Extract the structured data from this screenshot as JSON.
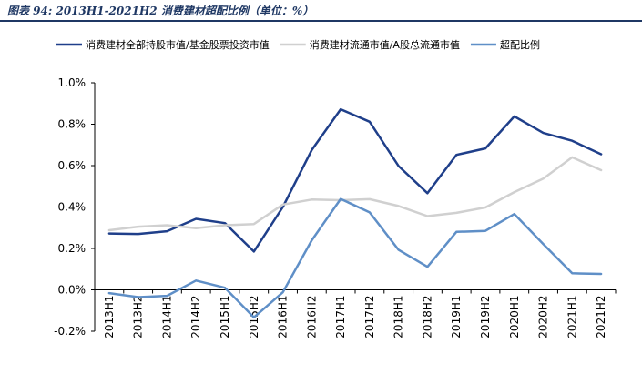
{
  "title": "图表 94:  2013H1-2021H2 消费建材超配比例（单位：%）",
  "chart_data": {
    "type": "line",
    "title": "图表 94:  2013H1-2021H2 消费建材超配比例（单位：%）",
    "xlabel": "",
    "ylabel": "",
    "categories": [
      "2013H1",
      "2013H2",
      "2014H1",
      "2014H2",
      "2015H1",
      "2015H2",
      "2016H1",
      "2016H2",
      "2017H1",
      "2017H2",
      "2018H1",
      "2018H2",
      "2019H1",
      "2019H2",
      "2020H1",
      "2020H2",
      "2021H1",
      "2021H2"
    ],
    "ylim": [
      -0.2,
      1.0
    ],
    "yticks": [
      "-0.2%",
      "0.0%",
      "0.2%",
      "0.4%",
      "0.6%",
      "0.8%",
      "1.0%"
    ],
    "legend_position": "top",
    "grid": false,
    "series": [
      {
        "name": "消费建材全部持股市值/基金股票投资市值",
        "color": "#1f3f8a",
        "values": [
          0.272,
          0.27,
          0.283,
          0.343,
          0.322,
          0.185,
          0.4,
          0.675,
          0.872,
          0.812,
          0.598,
          0.467,
          0.652,
          0.683,
          0.838,
          0.758,
          0.72,
          0.655
        ]
      },
      {
        "name": "消费建材流通市值/A股总流通市值",
        "color": "#d0d0d0",
        "values": [
          0.288,
          0.305,
          0.312,
          0.298,
          0.312,
          0.318,
          0.412,
          0.436,
          0.433,
          0.438,
          0.405,
          0.356,
          0.372,
          0.398,
          0.472,
          0.537,
          0.64,
          0.578
        ]
      },
      {
        "name": "超配比例",
        "color": "#5f8fc7",
        "values": [
          -0.016,
          -0.035,
          -0.029,
          0.045,
          0.01,
          -0.133,
          -0.012,
          0.239,
          0.439,
          0.374,
          0.193,
          0.111,
          0.28,
          0.285,
          0.366,
          0.221,
          0.08,
          0.077
        ]
      }
    ]
  }
}
